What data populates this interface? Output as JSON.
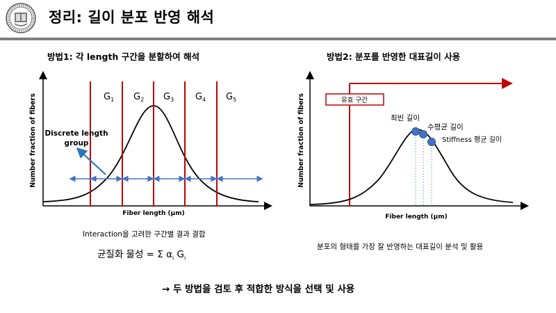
{
  "slide": {
    "title": "정리: 길이 분포 반영 해석",
    "logo_name": "university-seal"
  },
  "left_panel": {
    "heading": "방법1: 각 length 구간을 분할하여 해석",
    "y_label": "Number fraction of fibers",
    "x_label": "Fiber length (μm)",
    "groups": [
      {
        "letter": "G",
        "sub": "1"
      },
      {
        "letter": "G",
        "sub": "2"
      },
      {
        "letter": "G",
        "sub": "3"
      },
      {
        "letter": "G",
        "sub": "4"
      },
      {
        "letter": "G",
        "sub": "5"
      }
    ],
    "annotation_line1": "Discrete length",
    "annotation_line2": "group",
    "caption": "Interaction을 고려한 구간별 결과 결합",
    "formula": {
      "prefix": "균질화 물성 = Σ α",
      "sub1": "i",
      "middle": " G",
      "sub2": "i"
    }
  },
  "right_panel": {
    "heading": "방법2: 분포를 반영한 대표길이 사용",
    "y_label": "Number fraction of fibers",
    "x_label": "Fiber length (μm)",
    "valid_range_label": "유효 구간",
    "points": [
      {
        "label": "최빈 길이"
      },
      {
        "label": "수평균 길이"
      },
      {
        "label": "Stiffness 평균 길이"
      }
    ],
    "caption": "분포의 형태를 가장 잘 반영하는 대표길이 분석 및 활용"
  },
  "conclusion": "→ 두 방법을 검토 후 적합한 방식을 선택 및 사용",
  "colors": {
    "red": "#c00000",
    "blue": "#4472c4",
    "arrow_blue": "#2e75b6",
    "rule": "#7f7f7f"
  }
}
